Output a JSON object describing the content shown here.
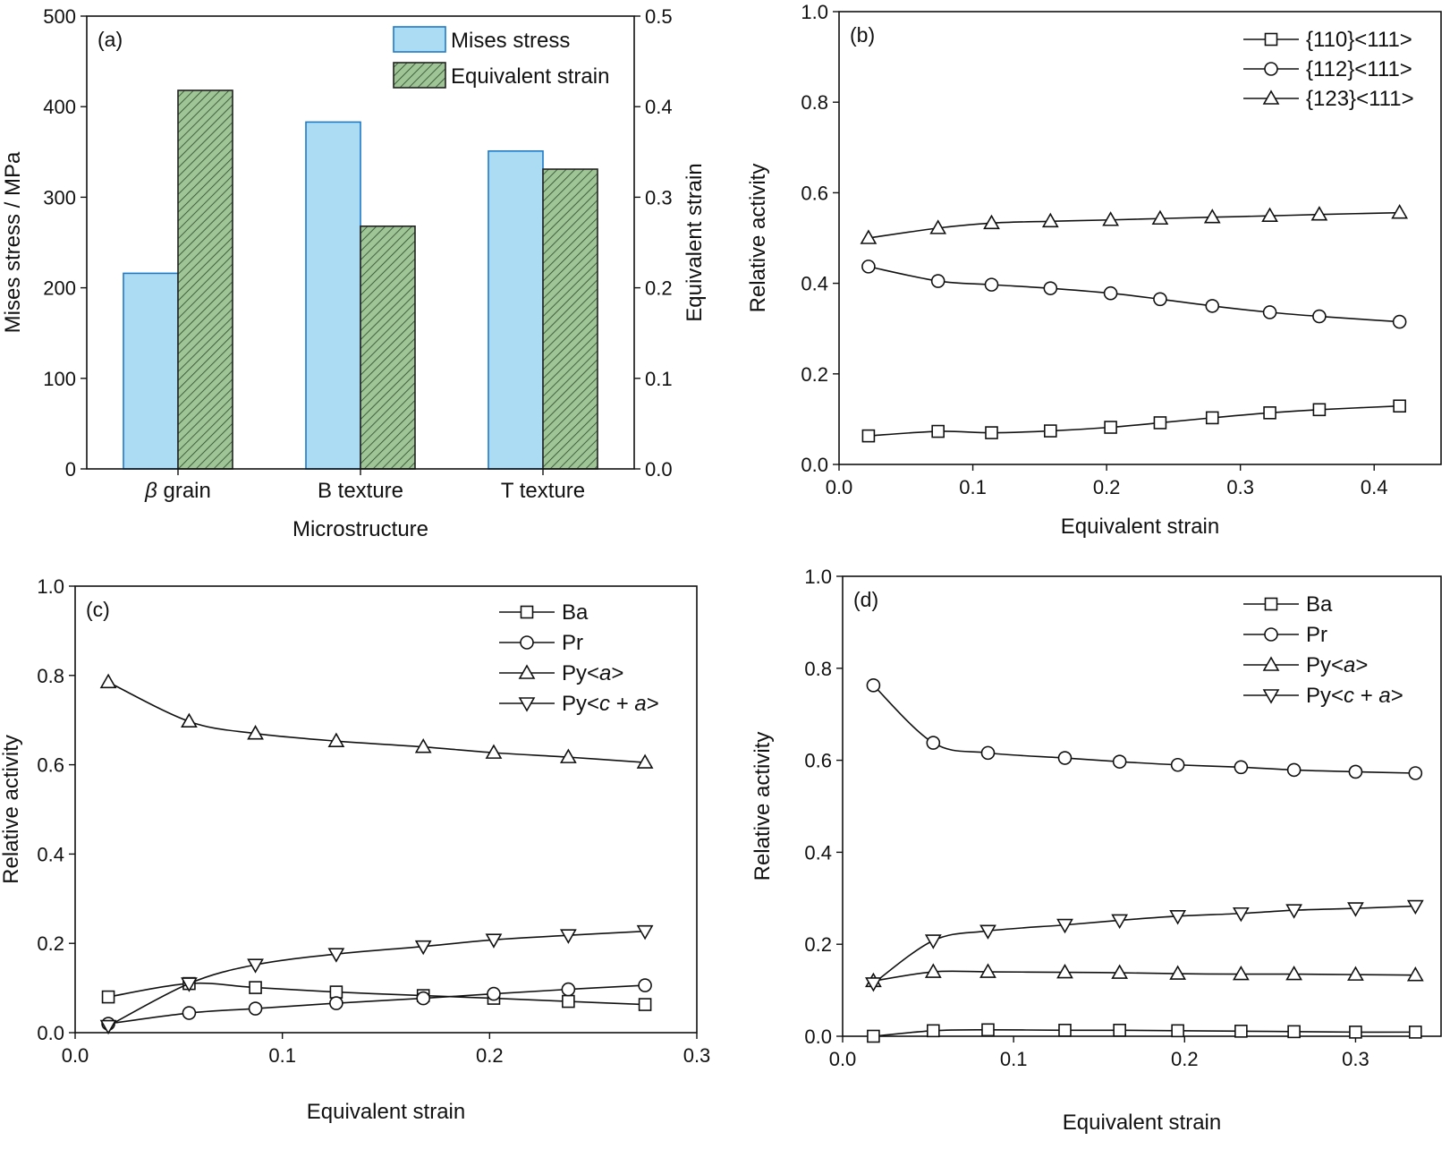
{
  "chart_data": [
    {
      "panel": "(a)",
      "type": "bar",
      "categories": [
        "β grain",
        "B texture",
        "T texture"
      ],
      "category_labels": [
        {
          "italic": "β",
          "rest": " grain"
        },
        {
          "italic": "",
          "rest": "B texture"
        },
        {
          "italic": "",
          "rest": "T texture"
        }
      ],
      "series": [
        {
          "name": "Mises stress",
          "axis": "left",
          "values": [
            216,
            383,
            351
          ],
          "color": "#abdcf3",
          "edge": "#1f7ac6",
          "pattern": "solid"
        },
        {
          "name": "Equivalent strain",
          "axis": "right",
          "values": [
            0.418,
            0.268,
            0.331
          ],
          "color": "#9fc495",
          "edge": "#222222",
          "pattern": "hatch"
        }
      ],
      "xlabel": "Microstructure",
      "ylabel": "Mises stress / MPa",
      "ylabel_right": "Equivalent strain",
      "ylim": [
        0,
        500
      ],
      "ylim_right": [
        0,
        0.5
      ],
      "yticks": [
        "0",
        "100",
        "200",
        "300",
        "400",
        "500"
      ],
      "yticks_right": [
        "0.0",
        "0.1",
        "0.2",
        "0.3",
        "0.4",
        "0.5"
      ],
      "legend_position": "top-right"
    },
    {
      "panel": "(b)",
      "type": "line",
      "x": [
        0.022,
        0.074,
        0.114,
        0.158,
        0.203,
        0.24,
        0.279,
        0.322,
        0.359,
        0.419
      ],
      "series": [
        {
          "name": "{110}<111>",
          "marker": "square",
          "values": [
            0.063,
            0.073,
            0.07,
            0.074,
            0.082,
            0.092,
            0.103,
            0.114,
            0.121,
            0.129
          ]
        },
        {
          "name": "{112}<111>",
          "marker": "circle",
          "values": [
            0.437,
            0.405,
            0.397,
            0.389,
            0.378,
            0.365,
            0.35,
            0.336,
            0.327,
            0.315
          ]
        },
        {
          "name": "{123}<111>",
          "marker": "triangle-up",
          "values": [
            0.5,
            0.522,
            0.533,
            0.537,
            0.54,
            0.543,
            0.546,
            0.549,
            0.552,
            0.556
          ]
        }
      ],
      "xlabel": "Equivalent strain",
      "ylabel": "Relative activity",
      "xlim": [
        0,
        0.45
      ],
      "ylim": [
        0,
        1.0
      ],
      "xticks": [
        "0.0",
        "0.1",
        "0.2",
        "0.3",
        "0.4"
      ],
      "yticks": [
        "0.0",
        "0.2",
        "0.4",
        "0.6",
        "0.8",
        "1.0"
      ],
      "legend_position": "top-right"
    },
    {
      "panel": "(c)",
      "type": "line",
      "x": [
        0.016,
        0.055,
        0.087,
        0.126,
        0.168,
        0.202,
        0.238,
        0.275
      ],
      "series": [
        {
          "name": "Ba",
          "marker": "square",
          "values": [
            0.08,
            0.11,
            0.101,
            0.091,
            0.083,
            0.077,
            0.07,
            0.063
          ]
        },
        {
          "name": "Pr",
          "marker": "circle",
          "values": [
            0.02,
            0.044,
            0.054,
            0.066,
            0.077,
            0.087,
            0.097,
            0.106
          ]
        },
        {
          "name": "Py<a>",
          "marker": "triangle-up",
          "values": [
            0.785,
            0.697,
            0.67,
            0.653,
            0.64,
            0.627,
            0.617,
            0.605
          ]
        },
        {
          "name": "Py<c + a>",
          "marker": "triangle-down",
          "values": [
            0.015,
            0.11,
            0.152,
            0.176,
            0.193,
            0.208,
            0.218,
            0.227
          ]
        }
      ],
      "legend_labels": [
        {
          "text": "Ba",
          "italic": []
        },
        {
          "text": "Pr",
          "italic": []
        },
        {
          "text": "Py<a>",
          "italic": [
            "a"
          ]
        },
        {
          "text": "Py<c + a>",
          "italic": [
            "c",
            "a"
          ]
        }
      ],
      "xlabel": "Equivalent strain",
      "ylabel": "Relative activity",
      "xlim": [
        0,
        0.3
      ],
      "ylim": [
        0,
        1.0
      ],
      "xticks": [
        "0.0",
        "0.1",
        "0.2",
        "0.3"
      ],
      "yticks": [
        "0.0",
        "0.2",
        "0.4",
        "0.6",
        "0.8",
        "1.0"
      ],
      "legend_position": "top-right"
    },
    {
      "panel": "(d)",
      "type": "line",
      "x": [
        0.018,
        0.053,
        0.085,
        0.13,
        0.162,
        0.196,
        0.233,
        0.264,
        0.3,
        0.335
      ],
      "series": [
        {
          "name": "Ba",
          "marker": "square",
          "values": [
            0.0,
            0.012,
            0.014,
            0.013,
            0.013,
            0.012,
            0.011,
            0.01,
            0.009,
            0.009
          ]
        },
        {
          "name": "Pr",
          "marker": "circle",
          "values": [
            0.763,
            0.638,
            0.616,
            0.605,
            0.597,
            0.59,
            0.585,
            0.579,
            0.575,
            0.572
          ]
        },
        {
          "name": "Py<a>",
          "marker": "triangle-up",
          "values": [
            0.12,
            0.14,
            0.14,
            0.139,
            0.138,
            0.136,
            0.135,
            0.135,
            0.134,
            0.133
          ]
        },
        {
          "name": "Py<c + a>",
          "marker": "triangle-down",
          "values": [
            0.115,
            0.208,
            0.229,
            0.242,
            0.252,
            0.261,
            0.267,
            0.274,
            0.278,
            0.283
          ]
        }
      ],
      "legend_labels": [
        {
          "text": "Ba",
          "italic": []
        },
        {
          "text": "Pr",
          "italic": []
        },
        {
          "text": "Py<a>",
          "italic": [
            "a"
          ]
        },
        {
          "text": "Py<c + a>",
          "italic": [
            "c",
            "a"
          ]
        }
      ],
      "xlabel": "Equivalent strain",
      "ylabel": "Relative activity",
      "xlim": [
        0,
        0.35
      ],
      "ylim": [
        0,
        1.0
      ],
      "xticks": [
        "0.0",
        "0.1",
        "0.2",
        "0.3"
      ],
      "yticks": [
        "0.0",
        "0.2",
        "0.4",
        "0.6",
        "0.8",
        "1.0"
      ],
      "legend_position": "top-right"
    }
  ]
}
